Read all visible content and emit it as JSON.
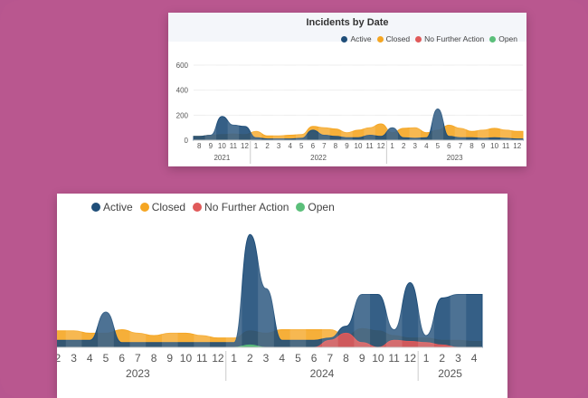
{
  "colors": {
    "active": "#1f4e79",
    "closed": "#f5a623",
    "nfa": "#e05a5a",
    "open": "#5bbf7a"
  },
  "chart_data": [
    {
      "type": "area",
      "title": "Incidents by Date",
      "legend": [
        "Active",
        "Closed",
        "No Further Action",
        "Open"
      ],
      "legend_position": "top-right",
      "ylim": [
        0,
        600
      ],
      "y_ticks": [
        "0",
        "200",
        "400",
        "600"
      ],
      "x_months": [
        "8",
        "9",
        "10",
        "11",
        "12",
        "1",
        "2",
        "3",
        "4",
        "5",
        "6",
        "7",
        "8",
        "9",
        "10",
        "11",
        "12",
        "1",
        "2",
        "3",
        "4",
        "5",
        "6",
        "7",
        "8",
        "9",
        "10",
        "11",
        "12"
      ],
      "x_years": [
        {
          "label": "2021",
          "span": 5
        },
        {
          "label": "2022",
          "span": 12
        },
        {
          "label": "2023",
          "span": 12
        }
      ],
      "series": [
        {
          "name": "Active",
          "values": [
            30,
            40,
            190,
            120,
            110,
            20,
            10,
            10,
            10,
            15,
            80,
            40,
            30,
            20,
            20,
            40,
            30,
            100,
            20,
            15,
            20,
            250,
            30,
            20,
            20,
            15,
            20,
            15,
            10
          ]
        },
        {
          "name": "Closed",
          "values": [
            30,
            40,
            45,
            50,
            45,
            70,
            35,
            35,
            40,
            45,
            110,
            100,
            90,
            60,
            80,
            100,
            130,
            60,
            95,
            100,
            60,
            80,
            120,
            95,
            70,
            80,
            95,
            80,
            70
          ]
        },
        {
          "name": "No Further Action",
          "values": [
            0,
            0,
            0,
            0,
            0,
            0,
            0,
            0,
            0,
            0,
            0,
            0,
            0,
            0,
            0,
            0,
            0,
            0,
            0,
            0,
            0,
            0,
            0,
            0,
            0,
            0,
            0,
            0,
            0
          ]
        },
        {
          "name": "Open",
          "values": [
            0,
            0,
            0,
            0,
            0,
            0,
            0,
            0,
            0,
            0,
            0,
            0,
            0,
            0,
            0,
            0,
            0,
            0,
            0,
            0,
            0,
            0,
            0,
            0,
            0,
            0,
            0,
            0,
            0
          ]
        }
      ]
    },
    {
      "type": "area",
      "legend": [
        "Active",
        "Closed",
        "No Further Action",
        "Open"
      ],
      "legend_position": "top-left",
      "ylim": [
        0,
        100
      ],
      "x_months": [
        "2",
        "3",
        "4",
        "5",
        "6",
        "7",
        "8",
        "9",
        "10",
        "11",
        "12",
        "1",
        "2",
        "3",
        "4",
        "5",
        "6",
        "7",
        "8",
        "9",
        "10",
        "11",
        "12",
        "1",
        "2",
        "3",
        "4"
      ],
      "x_years": [
        {
          "label": "2023",
          "span": 11
        },
        {
          "label": "2024",
          "span": 12
        },
        {
          "label": "2025",
          "span": 4
        }
      ],
      "series": [
        {
          "name": "Active",
          "values": [
            6,
            6,
            6,
            30,
            4,
            4,
            4,
            4,
            4,
            4,
            4,
            4,
            96,
            50,
            6,
            6,
            6,
            8,
            18,
            45,
            45,
            15,
            55,
            10,
            42,
            45,
            45
          ]
        },
        {
          "name": "Closed",
          "values": [
            14,
            14,
            12,
            12,
            15,
            12,
            10,
            12,
            12,
            10,
            8,
            8,
            14,
            12,
            15,
            15,
            15,
            15,
            10,
            16,
            14,
            10,
            8,
            8,
            6,
            6,
            5
          ]
        },
        {
          "name": "No Further Action",
          "values": [
            0,
            0,
            0,
            0,
            0,
            0,
            0,
            0,
            0,
            0,
            0,
            0,
            0,
            0,
            0,
            0,
            0,
            6,
            12,
            4,
            0,
            6,
            5,
            4,
            2,
            0,
            0
          ]
        },
        {
          "name": "Open",
          "values": [
            0,
            0,
            0,
            0,
            0,
            0,
            0,
            0,
            0,
            0,
            0,
            0,
            2,
            0,
            0,
            0,
            0,
            0,
            0,
            0,
            0,
            0,
            0,
            0,
            0,
            0,
            0
          ]
        }
      ]
    }
  ]
}
